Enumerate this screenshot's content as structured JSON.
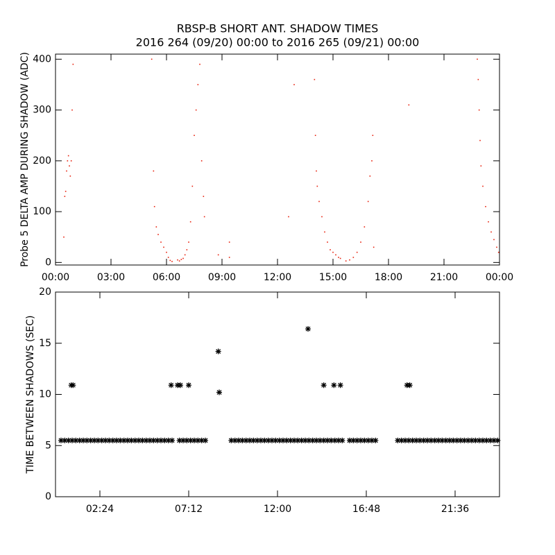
{
  "chart_data": [
    {
      "type": "scatter",
      "title": "RBSP-B SHORT ANT. SHADOW TIMES",
      "subtitle": "2016 264 (09/20) 00:00 to 2016 265 (09/21) 00:00",
      "y_label": "Probe 5 DELTA AMP DURING SHADOW (ADC)",
      "color": "#e8200c",
      "xlim": [
        0,
        24
      ],
      "ylim": [
        -5,
        410
      ],
      "xticks": [
        {
          "value": 0,
          "label": "00:00"
        },
        {
          "value": 3,
          "label": "03:00"
        },
        {
          "value": 6,
          "label": "06:00"
        },
        {
          "value": 9,
          "label": "09:00"
        },
        {
          "value": 12,
          "label": "12:00"
        },
        {
          "value": 15,
          "label": "15:00"
        },
        {
          "value": 18,
          "label": "18:00"
        },
        {
          "value": 21,
          "label": "21:00"
        },
        {
          "value": 24,
          "label": "00:00"
        }
      ],
      "yticks": [
        0,
        100,
        200,
        300,
        400
      ],
      "x": [
        0.45,
        0.5,
        0.55,
        0.6,
        0.65,
        0.7,
        0.75,
        0.8,
        0.85,
        0.9,
        0.95,
        5.2,
        5.3,
        5.35,
        5.45,
        5.55,
        5.7,
        5.85,
        6.0,
        6.1,
        6.2,
        6.3,
        6.6,
        6.7,
        6.8,
        6.9,
        7.0,
        7.1,
        7.2,
        7.3,
        7.4,
        7.5,
        7.6,
        7.7,
        7.8,
        7.9,
        8.0,
        8.05,
        8.8,
        9.4,
        9.4,
        12.9,
        12.6,
        14.0,
        14.05,
        14.1,
        14.15,
        14.25,
        14.4,
        14.55,
        14.7,
        14.85,
        15.0,
        15.15,
        15.3,
        15.4,
        15.7,
        15.9,
        16.1,
        16.3,
        16.5,
        16.7,
        16.9,
        17.0,
        17.1,
        17.15,
        17.2,
        19.1,
        22.8,
        22.85,
        22.9,
        22.95,
        23.0,
        23.1,
        23.25,
        23.4,
        23.55,
        23.7,
        23.85,
        23.95
      ],
      "values": [
        50,
        130,
        140,
        180,
        200,
        210,
        190,
        170,
        200,
        300,
        390,
        400,
        180,
        110,
        70,
        55,
        40,
        30,
        20,
        10,
        4,
        2,
        5,
        3,
        6,
        8,
        15,
        25,
        40,
        80,
        150,
        250,
        300,
        350,
        390,
        200,
        130,
        90,
        15,
        40,
        10,
        350,
        90,
        360,
        250,
        180,
        150,
        120,
        90,
        60,
        40,
        25,
        20,
        15,
        10,
        8,
        3,
        5,
        10,
        20,
        40,
        70,
        120,
        170,
        200,
        250,
        30,
        310,
        400,
        360,
        300,
        240,
        190,
        150,
        110,
        80,
        60,
        45,
        30,
        20
      ]
    },
    {
      "type": "scatter",
      "y_label": "TIME BETWEEN SHADOWS (SEC)",
      "color": "#000000",
      "xlim": [
        0,
        24
      ],
      "ylim": [
        0,
        20
      ],
      "xticks": [
        {
          "value": 2.4,
          "label": "02:24"
        },
        {
          "value": 7.2,
          "label": "07:12"
        },
        {
          "value": 12,
          "label": "12:00"
        },
        {
          "value": 16.8,
          "label": "16:48"
        },
        {
          "value": 21.6,
          "label": "21:36"
        }
      ],
      "yticks": [
        0,
        5,
        10,
        15,
        20
      ],
      "x": [
        0.3,
        0.5,
        0.7,
        0.9,
        1.1,
        1.3,
        1.5,
        1.7,
        1.9,
        2.1,
        2.3,
        2.5,
        2.7,
        2.9,
        3.1,
        3.3,
        3.5,
        3.7,
        3.9,
        4.1,
        4.3,
        4.5,
        4.7,
        4.9,
        5.1,
        5.3,
        5.5,
        5.7,
        5.9,
        6.1,
        6.3,
        6.7,
        6.9,
        7.1,
        7.3,
        7.5,
        7.7,
        7.9,
        8.1,
        9.5,
        9.7,
        9.9,
        10.1,
        10.3,
        10.5,
        10.7,
        10.9,
        11.1,
        11.3,
        11.5,
        11.7,
        11.9,
        12.1,
        12.3,
        12.5,
        12.7,
        12.9,
        13.1,
        13.3,
        13.5,
        13.7,
        13.9,
        14.1,
        14.3,
        14.5,
        14.7,
        14.9,
        15.1,
        15.3,
        15.5,
        15.9,
        16.1,
        16.3,
        16.5,
        16.7,
        16.9,
        17.1,
        17.3,
        18.5,
        18.7,
        18.9,
        19.1,
        19.3,
        19.5,
        19.7,
        19.9,
        20.1,
        20.3,
        20.5,
        20.7,
        20.9,
        21.1,
        21.3,
        21.5,
        21.7,
        21.9,
        22.1,
        22.3,
        22.5,
        22.7,
        22.9,
        23.1,
        23.3,
        23.5,
        23.7,
        23.9,
        0.85,
        0.95,
        6.25,
        6.6,
        6.75,
        7.2,
        8.8,
        8.85,
        13.65,
        14.5,
        15.05,
        15.4,
        19.0,
        19.15
      ],
      "values": [
        5.5,
        5.5,
        5.5,
        5.5,
        5.5,
        5.5,
        5.5,
        5.5,
        5.5,
        5.5,
        5.5,
        5.5,
        5.5,
        5.5,
        5.5,
        5.5,
        5.5,
        5.5,
        5.5,
        5.5,
        5.5,
        5.5,
        5.5,
        5.5,
        5.5,
        5.5,
        5.5,
        5.5,
        5.5,
        5.5,
        5.5,
        5.5,
        5.5,
        5.5,
        5.5,
        5.5,
        5.5,
        5.5,
        5.5,
        5.5,
        5.5,
        5.5,
        5.5,
        5.5,
        5.5,
        5.5,
        5.5,
        5.5,
        5.5,
        5.5,
        5.5,
        5.5,
        5.5,
        5.5,
        5.5,
        5.5,
        5.5,
        5.5,
        5.5,
        5.5,
        5.5,
        5.5,
        5.5,
        5.5,
        5.5,
        5.5,
        5.5,
        5.5,
        5.5,
        5.5,
        5.5,
        5.5,
        5.5,
        5.5,
        5.5,
        5.5,
        5.5,
        5.5,
        5.5,
        5.5,
        5.5,
        5.5,
        5.5,
        5.5,
        5.5,
        5.5,
        5.5,
        5.5,
        5.5,
        5.5,
        5.5,
        5.5,
        5.5,
        5.5,
        5.5,
        5.5,
        5.5,
        5.5,
        5.5,
        5.5,
        5.5,
        5.5,
        5.5,
        5.5,
        5.5,
        5.5,
        10.9,
        10.9,
        10.9,
        10.9,
        10.9,
        10.9,
        14.2,
        10.2,
        16.4,
        10.9,
        10.9,
        10.9,
        10.9,
        10.9
      ]
    }
  ]
}
